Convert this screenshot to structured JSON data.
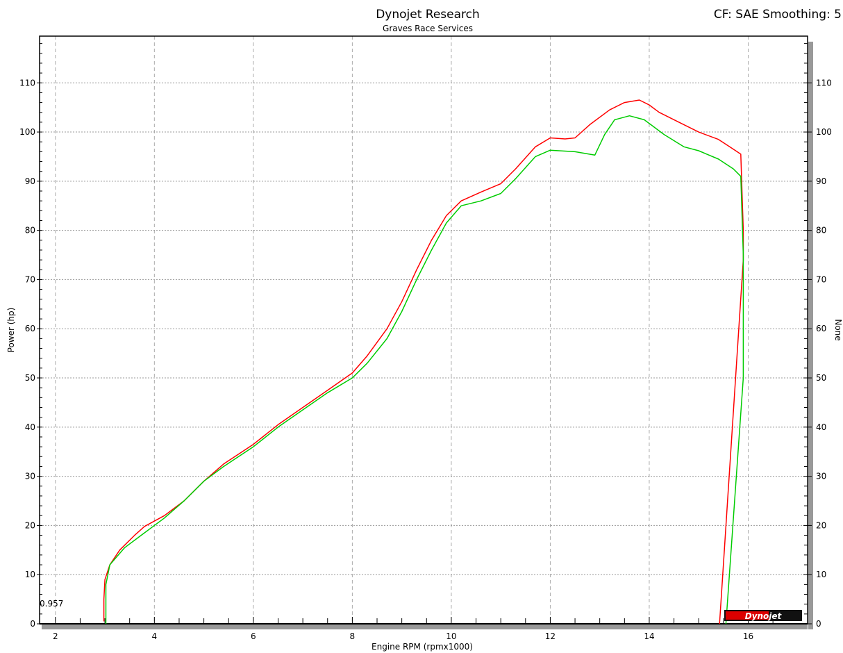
{
  "chart_data": {
    "type": "line",
    "title": "Dynojet Research",
    "subtitle": "Graves Race Services",
    "corner_note": "CF: SAE Smoothing: 5",
    "xlabel": "Engine RPM (rpmx1000)",
    "ylabel": "Power (hp)",
    "y2label": "None",
    "annotation": "0.957",
    "logo": "Dynojet",
    "xlim": [
      1.68,
      17.2
    ],
    "ylim": [
      0,
      119.5
    ],
    "xticks": [
      2,
      4,
      6,
      8,
      10,
      12,
      14,
      16
    ],
    "yticks": [
      0,
      10,
      20,
      30,
      40,
      50,
      60,
      70,
      80,
      90,
      100,
      110
    ],
    "grid": true,
    "series": [
      {
        "color": "#ff0000",
        "points": [
          [
            2.98,
            0.5
          ],
          [
            2.98,
            5
          ],
          [
            3.0,
            9
          ],
          [
            3.1,
            12
          ],
          [
            3.3,
            15
          ],
          [
            3.6,
            18
          ],
          [
            3.8,
            19.8
          ],
          [
            4.2,
            22
          ],
          [
            4.6,
            25
          ],
          [
            5.0,
            29
          ],
          [
            5.4,
            32.5
          ],
          [
            6.0,
            36.5
          ],
          [
            6.5,
            40.5
          ],
          [
            7.0,
            44
          ],
          [
            7.5,
            47.5
          ],
          [
            8.0,
            51
          ],
          [
            8.3,
            54.5
          ],
          [
            8.7,
            60
          ],
          [
            9.0,
            65.5
          ],
          [
            9.3,
            72
          ],
          [
            9.6,
            78
          ],
          [
            9.9,
            83
          ],
          [
            10.2,
            86
          ],
          [
            10.6,
            87.8
          ],
          [
            11.0,
            89.5
          ],
          [
            11.3,
            92.5
          ],
          [
            11.7,
            97
          ],
          [
            12.0,
            98.8
          ],
          [
            12.3,
            98.6
          ],
          [
            12.5,
            98.8
          ],
          [
            12.8,
            101.5
          ],
          [
            13.2,
            104.5
          ],
          [
            13.5,
            106
          ],
          [
            13.8,
            106.5
          ],
          [
            14.0,
            105.5
          ],
          [
            14.2,
            104
          ],
          [
            14.6,
            102
          ],
          [
            15.0,
            100
          ],
          [
            15.4,
            98.5
          ],
          [
            15.7,
            96.5
          ],
          [
            15.85,
            95.5
          ],
          [
            15.9,
            80
          ],
          [
            15.9,
            74
          ],
          [
            15.42,
            0
          ]
        ]
      },
      {
        "color": "#00cc00",
        "points": [
          [
            3.02,
            0
          ],
          [
            3.02,
            8
          ],
          [
            3.1,
            12
          ],
          [
            3.4,
            15.5
          ],
          [
            3.8,
            18.5
          ],
          [
            4.2,
            21.5
          ],
          [
            4.6,
            25
          ],
          [
            5.0,
            29
          ],
          [
            5.4,
            32
          ],
          [
            6.0,
            36
          ],
          [
            6.5,
            40
          ],
          [
            7.0,
            43.5
          ],
          [
            7.5,
            47
          ],
          [
            8.0,
            50
          ],
          [
            8.3,
            53
          ],
          [
            8.7,
            58
          ],
          [
            9.0,
            63.5
          ],
          [
            9.3,
            70
          ],
          [
            9.6,
            76
          ],
          [
            9.9,
            81.5
          ],
          [
            10.2,
            85
          ],
          [
            10.6,
            86
          ],
          [
            11.0,
            87.5
          ],
          [
            11.3,
            90.5
          ],
          [
            11.7,
            95
          ],
          [
            12.0,
            96.3
          ],
          [
            12.5,
            96
          ],
          [
            12.9,
            95.3
          ],
          [
            13.1,
            99.5
          ],
          [
            13.3,
            102.5
          ],
          [
            13.6,
            103.3
          ],
          [
            13.9,
            102.5
          ],
          [
            14.3,
            99.5
          ],
          [
            14.7,
            97
          ],
          [
            15.0,
            96.2
          ],
          [
            15.4,
            94.5
          ],
          [
            15.7,
            92.5
          ],
          [
            15.85,
            91
          ],
          [
            15.9,
            75
          ],
          [
            15.9,
            50
          ],
          [
            15.55,
            0
          ]
        ]
      }
    ]
  }
}
